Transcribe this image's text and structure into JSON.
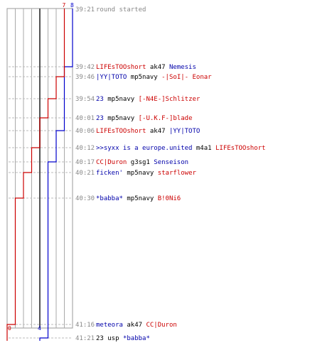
{
  "chart_data": {
    "type": "line",
    "title": "",
    "xlabel": "",
    "ylabel": "",
    "series": [],
    "teams": [
      {
        "color": "#0000cc",
        "start": 8,
        "end": 4
      },
      {
        "color": "#cc0000",
        "start": 7,
        "end": 0
      }
    ],
    "events": [
      {
        "time": "39:21",
        "parts": [
          {
            "text": "round started",
            "color": "gray"
          }
        ]
      },
      {
        "time": "39:42",
        "parts": [
          {
            "text": "LIFEsTOOshort",
            "color": "red"
          },
          {
            "text": " ak47 ",
            "color": "black"
          },
          {
            "text": "Nemesis",
            "color": "blue"
          }
        ],
        "blue": 7,
        "red": 7
      },
      {
        "time": "39:46",
        "parts": [
          {
            "text": "|YY|TOTO",
            "color": "blue"
          },
          {
            "text": " mp5navy ",
            "color": "black"
          },
          {
            "text": "-|SoI|- Eonar",
            "color": "red"
          }
        ],
        "blue": 7,
        "red": 6
      },
      {
        "time": "39:54",
        "parts": [
          {
            "text": "23",
            "color": "blue"
          },
          {
            "text": " mp5navy ",
            "color": "black"
          },
          {
            "text": "[-N4E-]Schlitzer",
            "color": "red"
          }
        ],
        "blue": 7,
        "red": 5
      },
      {
        "time": "40:01",
        "parts": [
          {
            "text": "23",
            "color": "blue"
          },
          {
            "text": " mp5navy ",
            "color": "black"
          },
          {
            "text": "[-U.K.F-]blade",
            "color": "red"
          }
        ],
        "blue": 7,
        "red": 4
      },
      {
        "time": "40:06",
        "parts": [
          {
            "text": "LIFEsTOOshort",
            "color": "red"
          },
          {
            "text": " ak47 ",
            "color": "black"
          },
          {
            "text": "|YY|TOTO",
            "color": "blue"
          }
        ],
        "blue": 6,
        "red": 4
      },
      {
        "time": "40:12",
        "parts": [
          {
            "text": ">>syxx is a europe.united",
            "color": "blue"
          },
          {
            "text": " m4a1 ",
            "color": "black"
          },
          {
            "text": "LIFEsTOOshort",
            "color": "red"
          }
        ],
        "blue": 6,
        "red": 3
      },
      {
        "time": "40:17",
        "parts": [
          {
            "text": "CC|Duron",
            "color": "red"
          },
          {
            "text": " g3sg1 ",
            "color": "black"
          },
          {
            "text": "Senseison",
            "color": "blue"
          }
        ],
        "blue": 5,
        "red": 3
      },
      {
        "time": "40:21",
        "parts": [
          {
            "text": "ficken'",
            "color": "blue"
          },
          {
            "text": " mp5navy ",
            "color": "black"
          },
          {
            "text": "starflower",
            "color": "red"
          }
        ],
        "blue": 5,
        "red": 2
      },
      {
        "time": "40:30",
        "parts": [
          {
            "text": "*babba*",
            "color": "blue"
          },
          {
            "text": " mp5navy ",
            "color": "black"
          },
          {
            "text": "B!0Ni6",
            "color": "red"
          }
        ],
        "blue": 5,
        "red": 1
      },
      {
        "time": "41:16",
        "parts": [
          {
            "text": "meteora",
            "color": "blue"
          },
          {
            "text": " ak47 ",
            "color": "black"
          },
          {
            "text": "CC|Duron",
            "color": "red"
          }
        ],
        "blue": 5,
        "red": 0
      },
      {
        "time": "41:21",
        "parts": [
          {
            "text": "23",
            "color": "black"
          },
          {
            "text": " usp ",
            "color": "black"
          },
          {
            "text": "*babba*",
            "color": "blue"
          }
        ],
        "blue": 4,
        "red": 0
      }
    ]
  }
}
